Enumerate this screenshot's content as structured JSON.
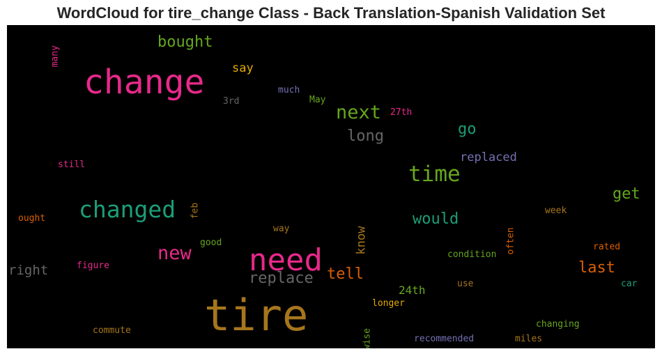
{
  "chart_data": {
    "type": "wordcloud",
    "title": "WordCloud for tire_change Class - Back Translation-Spanish Validation Set",
    "background": "#000000",
    "words": [
      {
        "text": "tire",
        "color": "#a6761d",
        "rotate": 0
      },
      {
        "text": "change",
        "color": "#e7298a",
        "rotate": 0
      },
      {
        "text": "need",
        "color": "#e7298a",
        "rotate": 0
      },
      {
        "text": "changed",
        "color": "#1b9e77",
        "rotate": 0
      },
      {
        "text": "time",
        "color": "#66a61e",
        "rotate": 0
      },
      {
        "text": "next",
        "color": "#66a61e",
        "rotate": 0
      },
      {
        "text": "new",
        "color": "#e7298a",
        "rotate": 0
      },
      {
        "text": "replace",
        "color": "#666666",
        "rotate": 0
      },
      {
        "text": "long",
        "color": "#666666",
        "rotate": 0
      },
      {
        "text": "bought",
        "color": "#66a61e",
        "rotate": 0
      },
      {
        "text": "would",
        "color": "#1b9e77",
        "rotate": 0
      },
      {
        "text": "last",
        "color": "#d95f02",
        "rotate": 0
      },
      {
        "text": "get",
        "color": "#66a61e",
        "rotate": 0
      },
      {
        "text": "go",
        "color": "#1b9e77",
        "rotate": 0
      },
      {
        "text": "tell",
        "color": "#d95f02",
        "rotate": 0
      },
      {
        "text": "right",
        "color": "#666666",
        "rotate": 0
      },
      {
        "text": "replaced",
        "color": "#7570b3",
        "rotate": 0
      },
      {
        "text": "know",
        "color": "#a6761d",
        "rotate": -90
      },
      {
        "text": "say",
        "color": "#e6ab02",
        "rotate": 0
      },
      {
        "text": "24th",
        "color": "#66a61e",
        "rotate": 0
      },
      {
        "text": "many",
        "color": "#e7298a",
        "rotate": -90
      },
      {
        "text": "3rd",
        "color": "#666666",
        "rotate": 0
      },
      {
        "text": "much",
        "color": "#7570b3",
        "rotate": 0
      },
      {
        "text": "May",
        "color": "#66a61e",
        "rotate": 0
      },
      {
        "text": "27th",
        "color": "#e7298a",
        "rotate": 0
      },
      {
        "text": "still",
        "color": "#e7298a",
        "rotate": 0
      },
      {
        "text": "feb",
        "color": "#a6761d",
        "rotate": -90
      },
      {
        "text": "ought",
        "color": "#d95f02",
        "rotate": 0
      },
      {
        "text": "good",
        "color": "#66a61e",
        "rotate": 0
      },
      {
        "text": "way",
        "color": "#a6761d",
        "rotate": 0
      },
      {
        "text": "often",
        "color": "#d95f02",
        "rotate": -90
      },
      {
        "text": "week",
        "color": "#a6761d",
        "rotate": 0
      },
      {
        "text": "figure",
        "color": "#e7298a",
        "rotate": 0
      },
      {
        "text": "condition",
        "color": "#66a61e",
        "rotate": 0
      },
      {
        "text": "rated",
        "color": "#d95f02",
        "rotate": 0
      },
      {
        "text": "use",
        "color": "#a6761d",
        "rotate": 0
      },
      {
        "text": "car",
        "color": "#1b9e77",
        "rotate": 0
      },
      {
        "text": "longer",
        "color": "#e6ab02",
        "rotate": 0
      },
      {
        "text": "wise",
        "color": "#66a61e",
        "rotate": -90
      },
      {
        "text": "commute",
        "color": "#a6761d",
        "rotate": 0
      },
      {
        "text": "changing",
        "color": "#66a61e",
        "rotate": 0
      },
      {
        "text": "recommended",
        "color": "#7570b3",
        "rotate": 0
      },
      {
        "text": "miles",
        "color": "#a6761d",
        "rotate": 0
      }
    ]
  }
}
